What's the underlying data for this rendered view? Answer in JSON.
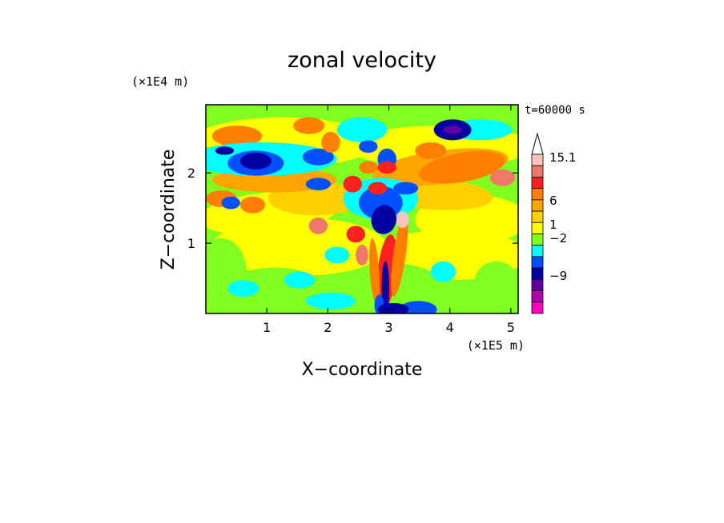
{
  "chart_data": {
    "type": "heatmap",
    "title": "zonal velocity",
    "xlabel": "X−coordinate",
    "ylabel": "Z−coordinate",
    "x_unit_label": "(×1E5 m)",
    "y_unit_label": "(×1E4 m)",
    "time_label": "t=60000 s",
    "xlim": [
      0,
      5.12
    ],
    "ylim": [
      0,
      2.97
    ],
    "x_ticks": [
      "1",
      "2",
      "3",
      "4",
      "5"
    ],
    "x_tick_values": [
      1,
      2,
      3,
      4,
      5
    ],
    "y_ticks": [
      "1",
      "2"
    ],
    "y_tick_values": [
      1,
      2
    ],
    "grid": false,
    "colorbar": {
      "tick_labels": [
        "15.1",
        "6",
        "1",
        "−2",
        "−9"
      ],
      "tick_values": [
        15.1,
        6,
        1,
        -2,
        -9
      ],
      "levels_top_to_bottom": [
        {
          "color": "#ffc0c0"
        },
        {
          "color": "#f07868"
        },
        {
          "color": "#ff2020"
        },
        {
          "color": "#ff8000"
        },
        {
          "color": "#ffa500"
        },
        {
          "color": "#ffd000"
        },
        {
          "color": "#ffff00"
        },
        {
          "color": "#80ff20"
        },
        {
          "color": "#00ffff"
        },
        {
          "color": "#0050ff"
        },
        {
          "color": "#0000a0"
        },
        {
          "color": "#6000a0"
        },
        {
          "color": "#b000b0"
        },
        {
          "color": "#ff00c0"
        }
      ]
    }
  }
}
